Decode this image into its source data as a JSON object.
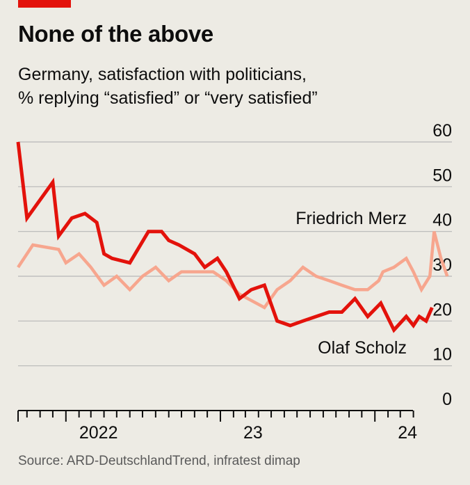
{
  "header": {
    "title": "None of the above",
    "subtitle_line1": "Germany, satisfaction with politicians,",
    "subtitle_line2": "% replying “satisfied” or “very satisfied”"
  },
  "footer": {
    "source": "Source: ARD-DeutschlandTrend, infratest dimap"
  },
  "colors": {
    "accent": "#e3120b",
    "scholz": "#e3120b",
    "merz": "#f7a68e",
    "grid": "#b7b7b7",
    "axis": "#0d0d0d",
    "background": "#edebe4"
  },
  "chart_data": {
    "type": "line",
    "title": "None of the above",
    "subtitle": "Germany, satisfaction with politicians, % replying “satisfied” or “very satisfied”",
    "xlabel": "",
    "ylabel": "",
    "ylim": [
      0,
      60
    ],
    "yticks": [
      "0",
      "10",
      "20",
      "30",
      "40",
      "50",
      "60"
    ],
    "xlim": [
      "2021-09",
      "2024-07"
    ],
    "xtick_labels": [
      {
        "x": "2022-01",
        "label": "2022"
      },
      {
        "x": "2023-01",
        "label": "23"
      },
      {
        "x": "2024-01",
        "label": "24"
      }
    ],
    "grid": true,
    "legend": "direct labels",
    "series": [
      {
        "name": "Olaf Scholz",
        "points": [
          [
            "2021-09-10",
            60
          ],
          [
            "2021-10-01",
            43
          ],
          [
            "2021-12-01",
            51
          ],
          [
            "2021-12-15",
            39
          ],
          [
            "2022-01-15",
            43
          ],
          [
            "2022-02-15",
            44
          ],
          [
            "2022-03-15",
            42
          ],
          [
            "2022-04-01",
            35
          ],
          [
            "2022-04-20",
            34
          ],
          [
            "2022-06-01",
            33
          ],
          [
            "2022-07-15",
            40
          ],
          [
            "2022-08-15",
            40
          ],
          [
            "2022-09-01",
            38
          ],
          [
            "2022-09-25",
            37
          ],
          [
            "2022-11-01",
            35
          ],
          [
            "2022-11-25",
            32
          ],
          [
            "2022-12-25",
            34
          ],
          [
            "2023-01-15",
            31
          ],
          [
            "2023-02-15",
            25
          ],
          [
            "2023-03-15",
            27
          ],
          [
            "2023-04-15",
            28
          ],
          [
            "2023-05-15",
            20
          ],
          [
            "2023-06-15",
            19
          ],
          [
            "2023-07-15",
            20
          ],
          [
            "2023-08-15",
            21
          ],
          [
            "2023-09-15",
            22
          ],
          [
            "2023-10-15",
            22
          ],
          [
            "2023-11-15",
            25
          ],
          [
            "2023-12-15",
            21
          ],
          [
            "2024-01-15",
            24
          ],
          [
            "2024-02-15",
            18
          ],
          [
            "2024-03-15",
            21
          ],
          [
            "2024-04-01",
            19
          ],
          [
            "2024-04-15",
            21
          ],
          [
            "2024-05-01",
            20
          ],
          [
            "2024-05-15",
            23
          ]
        ]
      },
      {
        "name": "Friedrich Merz",
        "points": [
          [
            "2021-09-10",
            32
          ],
          [
            "2021-10-15",
            37
          ],
          [
            "2021-12-15",
            36
          ],
          [
            "2022-01-01",
            33
          ],
          [
            "2022-02-01",
            35
          ],
          [
            "2022-03-01",
            32
          ],
          [
            "2022-04-01",
            28
          ],
          [
            "2022-05-01",
            30
          ],
          [
            "2022-06-01",
            27
          ],
          [
            "2022-07-01",
            30
          ],
          [
            "2022-08-01",
            32
          ],
          [
            "2022-09-01",
            29
          ],
          [
            "2022-10-01",
            31
          ],
          [
            "2022-11-15",
            31
          ],
          [
            "2022-12-15",
            31
          ],
          [
            "2023-01-15",
            29
          ],
          [
            "2023-02-15",
            26
          ],
          [
            "2023-04-15",
            23
          ],
          [
            "2023-05-15",
            27
          ],
          [
            "2023-06-15",
            29
          ],
          [
            "2023-07-15",
            32
          ],
          [
            "2023-08-15",
            30
          ],
          [
            "2023-09-15",
            29
          ],
          [
            "2023-10-15",
            28
          ],
          [
            "2023-11-15",
            27
          ],
          [
            "2023-12-15",
            27
          ],
          [
            "2024-01-10",
            29
          ],
          [
            "2024-01-20",
            31
          ],
          [
            "2024-02-15",
            32
          ],
          [
            "2024-03-15",
            34
          ],
          [
            "2024-04-01",
            31
          ],
          [
            "2024-04-20",
            27
          ],
          [
            "2024-05-10",
            30
          ],
          [
            "2024-05-20",
            40
          ],
          [
            "2024-06-05",
            34
          ],
          [
            "2024-06-20",
            30
          ]
        ]
      }
    ],
    "annotations": [
      "Friedrich Merz",
      "Olaf Scholz"
    ]
  }
}
